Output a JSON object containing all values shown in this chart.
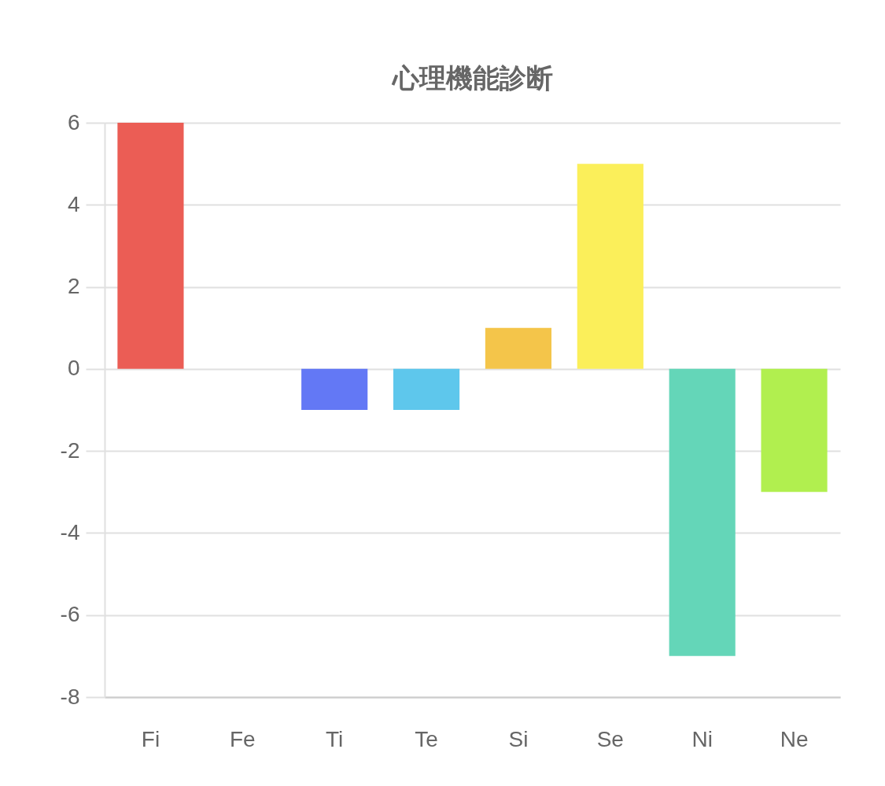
{
  "chart_data": {
    "type": "bar",
    "title": "心理機能診断",
    "categories": [
      "Fi",
      "Fe",
      "Ti",
      "Te",
      "Si",
      "Se",
      "Ni",
      "Ne"
    ],
    "values": [
      6,
      0,
      -1,
      -1,
      1,
      5,
      -7,
      -3
    ],
    "colors": [
      "#eb5d55",
      "#f0914e",
      "#6378f5",
      "#5ec7ec",
      "#f4c54a",
      "#fbef5a",
      "#64d6b8",
      "#b1ef4f"
    ],
    "ylim": [
      -8,
      6
    ],
    "yticks": [
      -8,
      -6,
      -4,
      -2,
      0,
      2,
      4,
      6
    ],
    "grid": "y"
  }
}
